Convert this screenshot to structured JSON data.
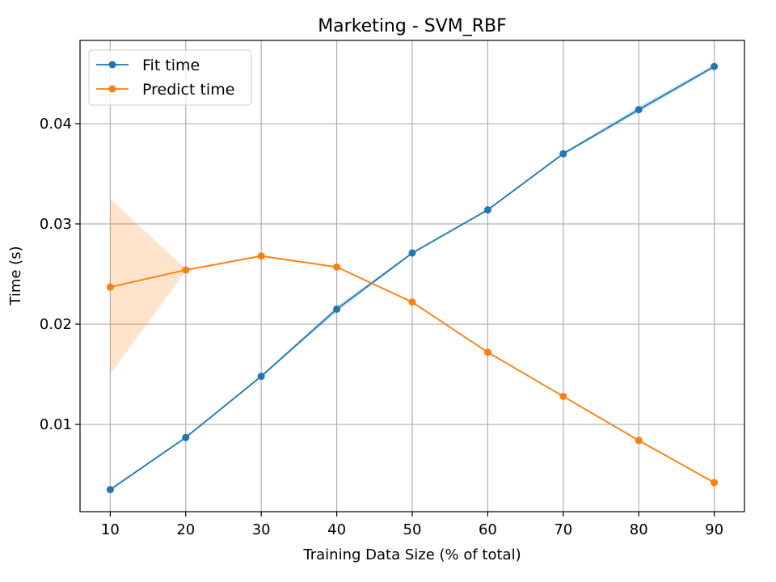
{
  "chart_data": {
    "type": "line",
    "title": "Marketing - SVM_RBF",
    "xlabel": "Training Data Size (% of total)",
    "ylabel": "Time (s)",
    "x": [
      10,
      20,
      30,
      40,
      50,
      60,
      70,
      80,
      90
    ],
    "xlim": [
      6,
      94
    ],
    "ylim": [
      0.0013,
      0.0483
    ],
    "xticks": [
      10,
      20,
      30,
      40,
      50,
      60,
      70,
      80,
      90
    ],
    "yticks": [
      0.01,
      0.02,
      0.03,
      0.04
    ],
    "ytick_labels": [
      "0.01",
      "0.02",
      "0.03",
      "0.04"
    ],
    "grid": true,
    "legend_position": "top-left",
    "series": [
      {
        "name": "Fit time",
        "color": "#1f77b4",
        "band_color": "#1f77b4",
        "values": [
          0.0035,
          0.0087,
          0.0148,
          0.0215,
          0.0271,
          0.0314,
          0.037,
          0.0414,
          0.0457
        ],
        "band_lower": [
          0.0034,
          0.0086,
          0.0147,
          0.0212,
          0.027,
          0.0313,
          0.0369,
          0.0411,
          0.0455
        ],
        "band_upper": [
          0.0036,
          0.0088,
          0.0149,
          0.0218,
          0.0272,
          0.0315,
          0.0371,
          0.0417,
          0.0459
        ]
      },
      {
        "name": "Predict time",
        "color": "#ff7f0e",
        "band_color": "#ff7f0e",
        "values": [
          0.0237,
          0.0254,
          0.0268,
          0.0257,
          0.0222,
          0.0172,
          0.0128,
          0.0084,
          0.0042
        ],
        "band_lower": [
          0.015,
          0.0253,
          0.0267,
          0.0256,
          0.0221,
          0.0171,
          0.0127,
          0.0083,
          0.0041
        ],
        "band_upper": [
          0.0325,
          0.0255,
          0.0269,
          0.0258,
          0.0223,
          0.0173,
          0.0129,
          0.0085,
          0.0043
        ]
      }
    ]
  }
}
